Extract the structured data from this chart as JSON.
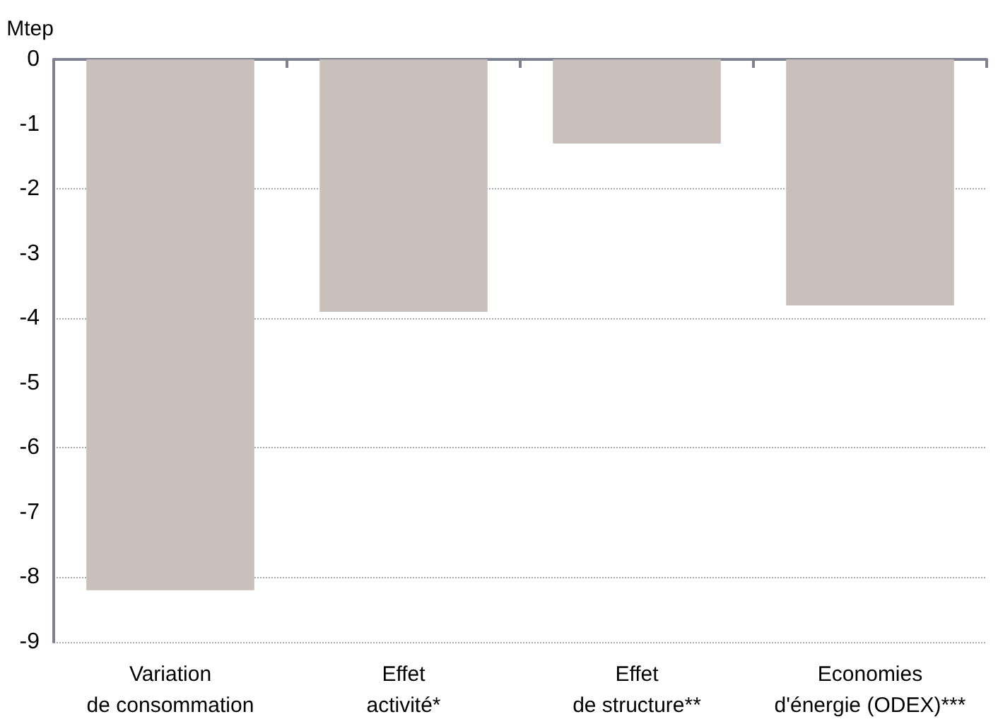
{
  "chart_data": {
    "type": "bar",
    "ylabel": "Mtep",
    "categories": [
      "Variation\nde consommation",
      "Effet\nactivité*",
      "Effet\nde structure**",
      "Economies\nd'énergie (ODEX)***"
    ],
    "values": [
      -8.2,
      -3.9,
      -1.3,
      -3.8
    ],
    "color": "#c9c0bb",
    "ylim": [
      -9,
      0
    ],
    "yticks": [
      0,
      -1,
      -2,
      -3,
      -4,
      -5,
      -6,
      -7,
      -8,
      -9
    ],
    "grid": "y"
  }
}
